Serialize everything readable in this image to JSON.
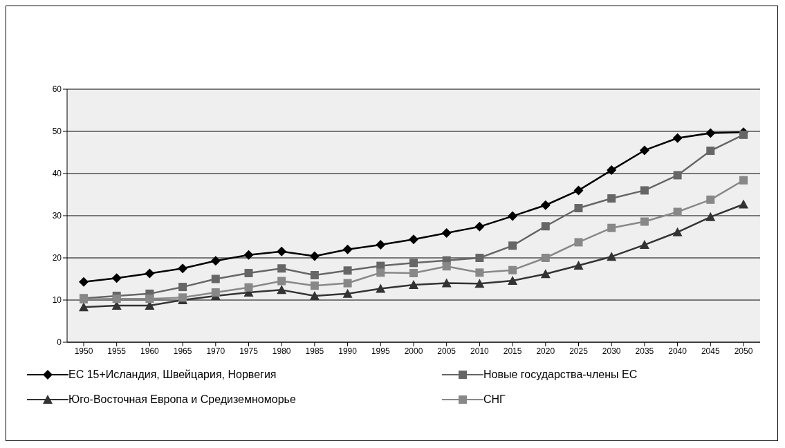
{
  "chart_data": {
    "type": "line",
    "categories": [
      "1950",
      "1955",
      "1960",
      "1965",
      "1970",
      "1975",
      "1980",
      "1985",
      "1990",
      "1995",
      "2000",
      "2005",
      "2010",
      "2015",
      "2020",
      "2025",
      "2030",
      "2035",
      "2040",
      "2045",
      "2050"
    ],
    "series": [
      {
        "name": "ЕС 15+Исландия, Швейцария, Норвегия",
        "color": "#000000",
        "marker": "diamond",
        "values": [
          14.3,
          15.2,
          16.3,
          17.5,
          19.3,
          20.7,
          21.5,
          20.4,
          22,
          23.1,
          24.4,
          25.9,
          27.4,
          29.9,
          32.5,
          36,
          40.8,
          45.5,
          48.4,
          49.6,
          49.8
        ]
      },
      {
        "name": "Новые государства-члены ЕС",
        "color": "#666666",
        "marker": "square",
        "values": [
          10.4,
          11,
          11.5,
          13.1,
          15,
          16.4,
          17.5,
          15.9,
          17,
          18.1,
          18.8,
          19.4,
          20,
          22.9,
          27.5,
          31.8,
          34.1,
          36,
          39.6,
          45.4,
          49.2
        ]
      },
      {
        "name": "Юго-Восточная Европа и Средиземноморье",
        "color": "#333333",
        "marker": "triangle",
        "values": [
          8.3,
          8.7,
          8.7,
          10,
          11,
          11.8,
          12.4,
          11,
          11.5,
          12.7,
          13.6,
          14,
          13.9,
          14.6,
          16.2,
          18.2,
          20.3,
          23.1,
          26.1,
          29.7,
          32.7
        ]
      },
      {
        "name": "СНГ",
        "color": "#888888",
        "marker": "square",
        "values": [
          10.2,
          10.3,
          10.3,
          10.6,
          11.8,
          13,
          14.5,
          13.4,
          14,
          16.5,
          16.4,
          18,
          16.5,
          17.1,
          20,
          23.7,
          27.1,
          28.6,
          30.9,
          33.8,
          38.4
        ]
      }
    ],
    "ylim": [
      0,
      60
    ],
    "yticks": [
      0,
      10,
      20,
      30,
      40,
      50,
      60
    ],
    "grid": "y",
    "legend": "bottom"
  }
}
